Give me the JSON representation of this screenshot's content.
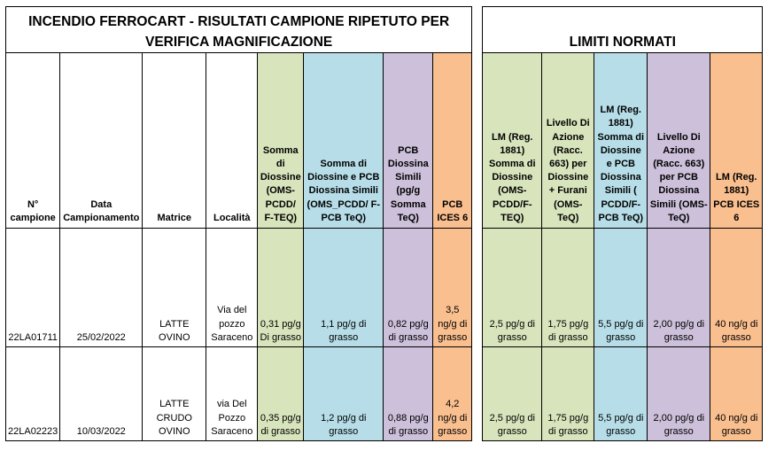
{
  "title": "INCENDIO FERROCART  - RISULTATI CAMPIONE RIPETUTO PER VERIFICA MAGNIFICAZIONE",
  "limits_title": "LIMITI NORMATI",
  "headers": {
    "campione": "N° campione",
    "data": "Data Campionamento",
    "matrice": "Matrice",
    "localita": "Località",
    "somma_diossine": "Somma di Diossine (OMS-PCDD/ F-TEQ)",
    "somma_diossine_pcb": "Somma di Diossine e PCB Diossina Simili (OMS_PCDD/ F-PCB TeQ)",
    "pcb_diossina_simili": "PCB Diossina Simili (pg/g Somma TeQ)",
    "pcb_ices6": "PCB ICES 6",
    "lm_diossine": "LM (Reg. 1881) Somma di Diossine (OMS-PCDD/F-TEQ)",
    "livello_azione_diossine": "Livello Di Azione (Racc. 663) per Diossine + Furani (OMS-TeQ)",
    "lm_diossine_pcb": "LM (Reg. 1881) Somma di Diossine e PCB Diossina Simili ( PCDD/F-PCB TeQ)",
    "livello_azione_pcb": "Livello Di Azione (Racc. 663) per PCB Diossina Simili (OMS-TeQ)",
    "lm_pcb_ices6": "LM (Reg. 1881) PCB ICES 6"
  },
  "rows": [
    {
      "campione": "22LA01711",
      "data": "25/02/2022",
      "matrice": "LATTE OVINO",
      "localita": "Via del pozzo Saraceno",
      "somma_diossine": "0,31 pg/g Di grasso",
      "somma_diossine_pcb": "1,1 pg/g di grasso",
      "pcb_diossina_simili": "0,82 pg/g di grasso",
      "pcb_ices6": "3,5 ng/g di grasso",
      "lm_diossine": "2,5 pg/g di grasso",
      "livello_azione_diossine": "1,75 pg/g di grasso",
      "lm_diossine_pcb": "5,5 pg/g di grasso",
      "livello_azione_pcb": "2,00 pg/g di grasso",
      "lm_pcb_ices6": "40 ng/g di grasso"
    },
    {
      "campione": "22LA02223",
      "data": "10/03/2022",
      "matrice": "LATTE CRUDO OVINO",
      "localita": "via Del Pozzo Saraceno",
      "somma_diossine": "0,35 pg/g di grasso",
      "somma_diossine_pcb": "1,2 pg/g di grasso",
      "pcb_diossina_simili": "0,88 pg/g di grasso",
      "pcb_ices6": "4,2 ng/g di grasso",
      "lm_diossine": "2,5 pg/g di grasso",
      "livello_azione_diossine": "1,75 pg/g di grasso",
      "lm_diossine_pcb": "5,5 pg/g di grasso",
      "livello_azione_pcb": "2,00 pg/g di grasso",
      "lm_pcb_ices6": "40 ng/g di grasso"
    }
  ],
  "colors": {
    "green": "#d8e4bc",
    "blue": "#b7dee8",
    "purple": "#ccc0da",
    "orange": "#fabf8f"
  }
}
